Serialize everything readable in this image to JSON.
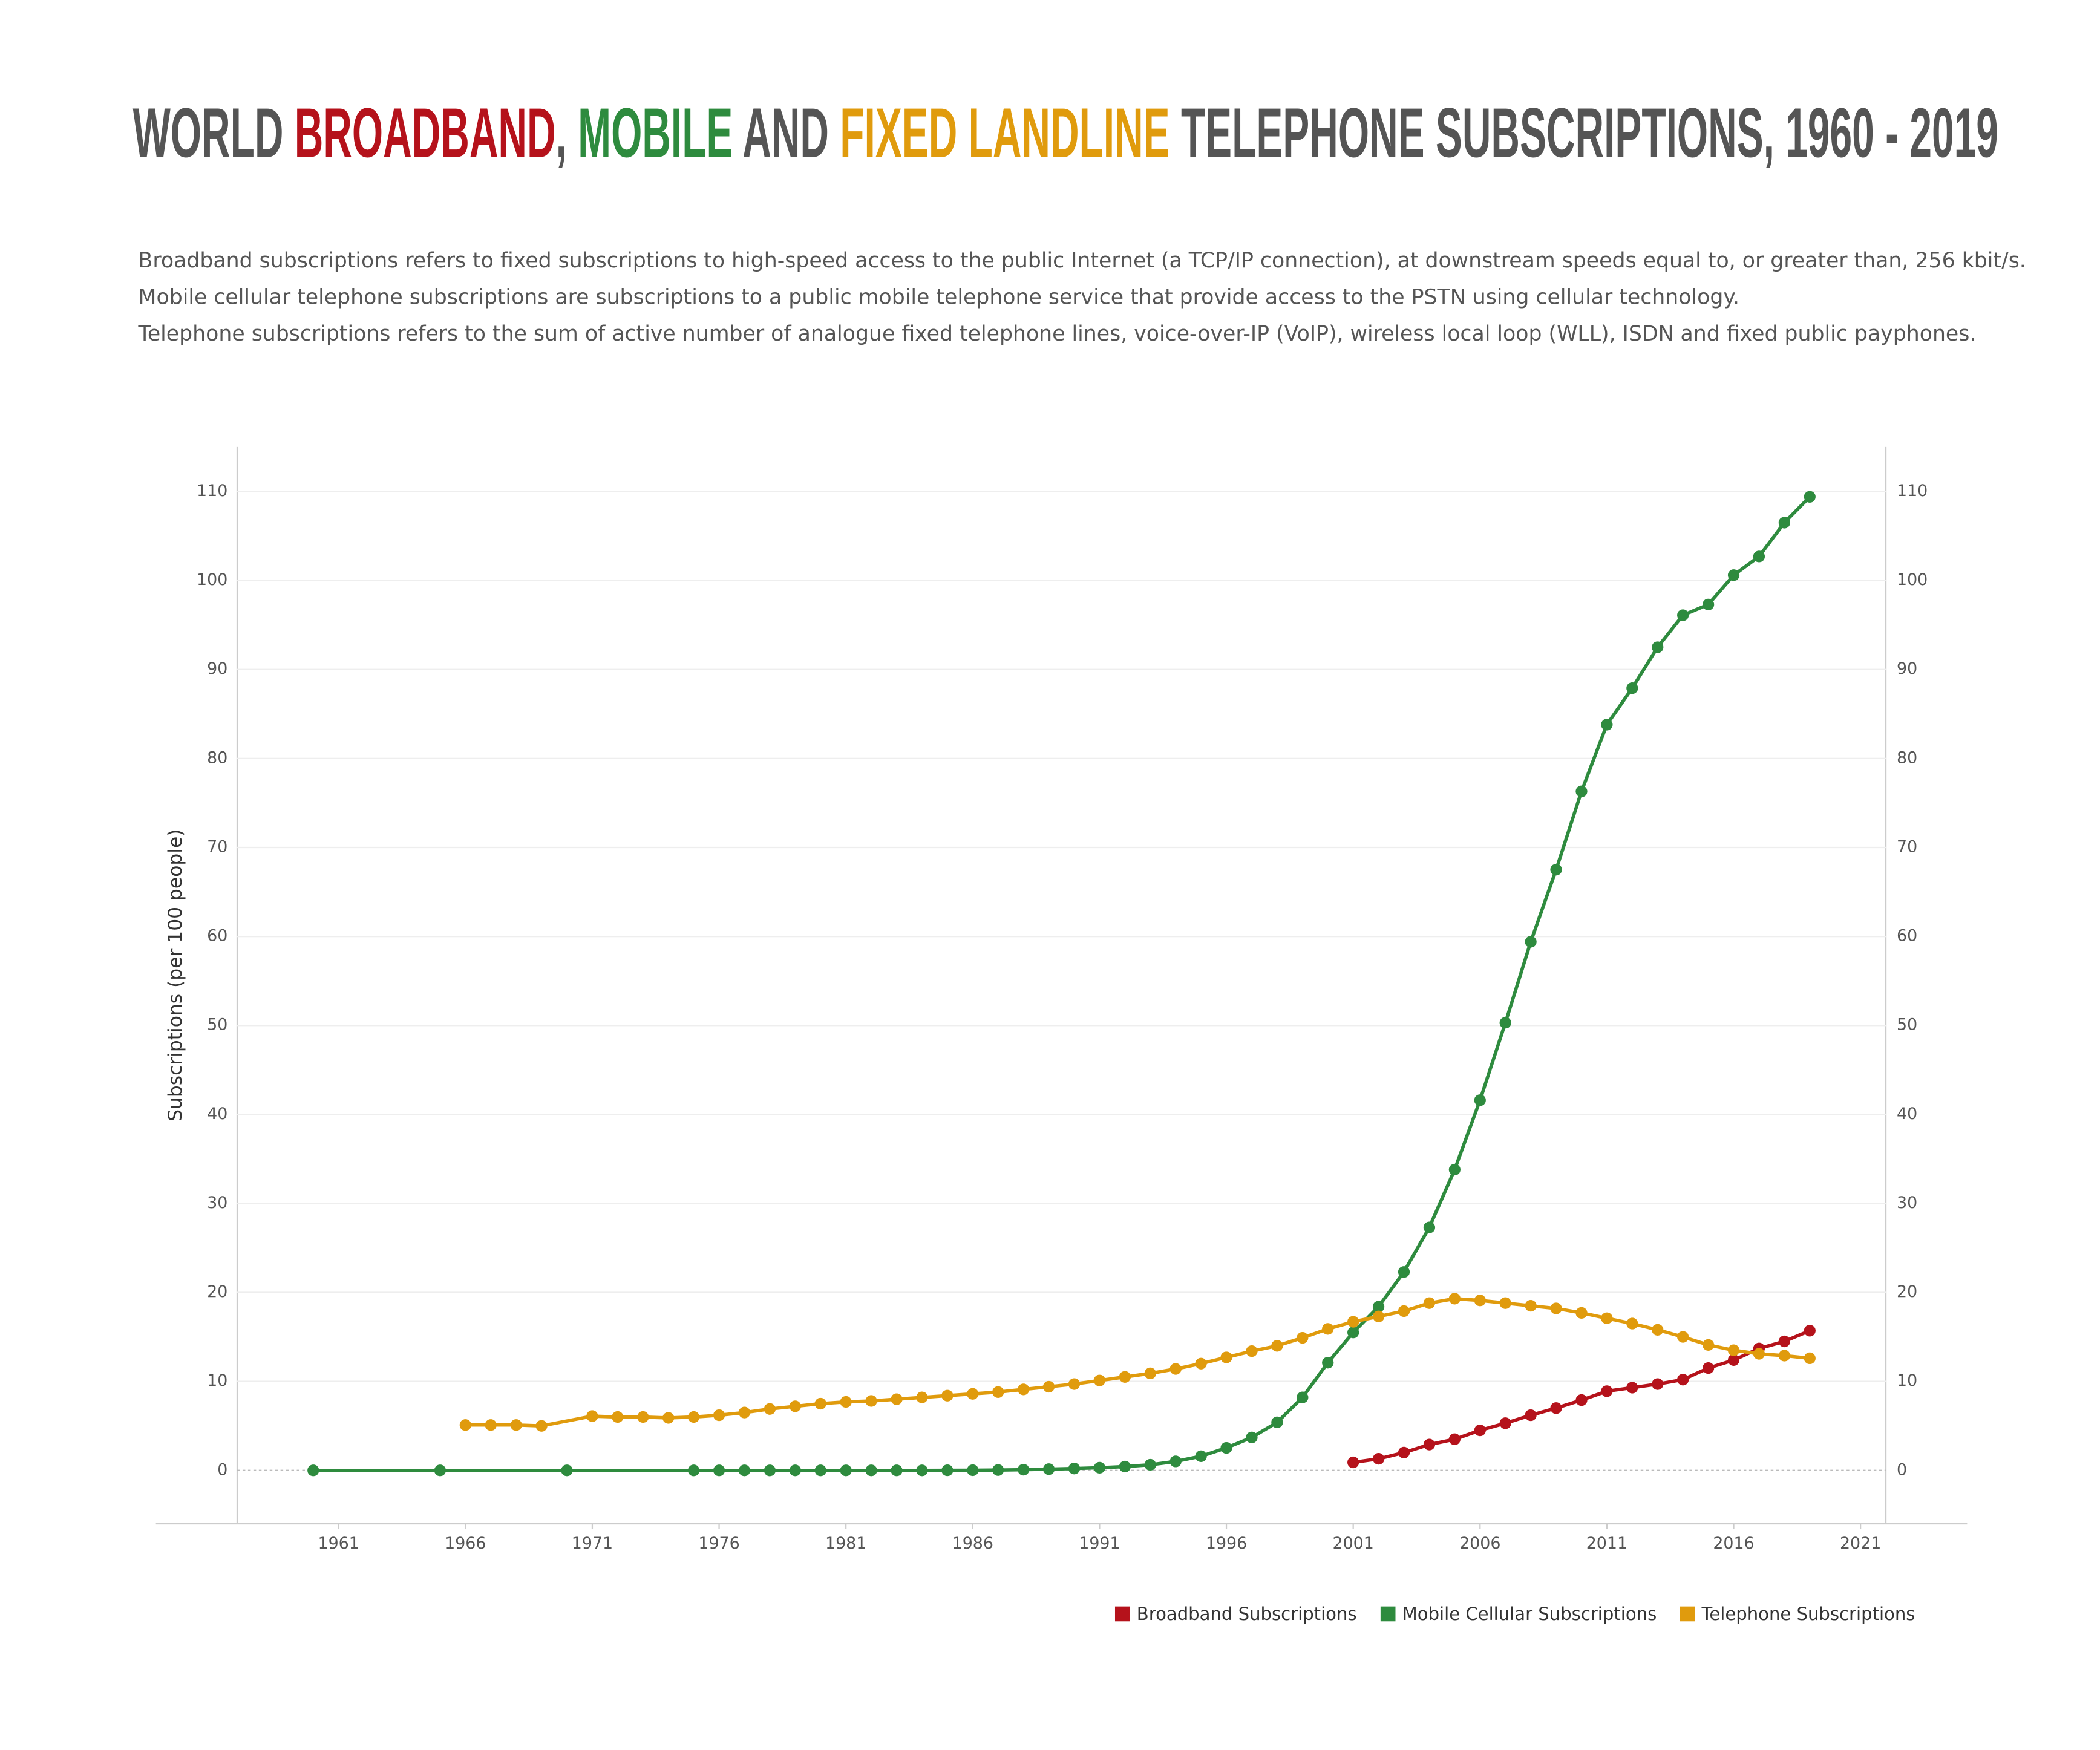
{
  "chart_data": {
    "type": "line",
    "title_parts": [
      {
        "text": "WORLD ",
        "color": "#555555"
      },
      {
        "text": "BROADBAND",
        "color": "#b5121b"
      },
      {
        "text": ", ",
        "color": "#555555"
      },
      {
        "text": "MOBILE",
        "color": "#2e8b3e"
      },
      {
        "text": " AND ",
        "color": "#555555"
      },
      {
        "text": "FIXED LANDLINE",
        "color": "#e09b0d"
      },
      {
        "text": " TELEPHONE SUBSCRIPTIONS, 1960 - 2019",
        "color": "#555555"
      }
    ],
    "description": [
      "Broadband subscriptions refers to fixed subscriptions to high-speed access to the public Internet (a TCP/IP connection), at downstream speeds equal to, or greater than, 256 kbit/s.",
      "Mobile cellular telephone subscriptions are subscriptions to a public mobile telephone service that provide access to the PSTN using cellular technology.",
      "Telephone subscriptions refers to the sum of active number of analogue fixed telephone lines, voice-over-IP (VoIP), wireless local loop (WLL), ISDN and fixed public payphones."
    ],
    "y_label": "Subscriptions (per 100 people)",
    "xlim": [
      1957,
      2022
    ],
    "xticks": [
      1961,
      1966,
      1971,
      1976,
      1981,
      1986,
      1991,
      1996,
      2001,
      2006,
      2011,
      2016,
      2021
    ],
    "ylim": [
      -6,
      115
    ],
    "yticks": [
      0,
      10,
      20,
      30,
      40,
      50,
      60,
      70,
      80,
      90,
      100,
      110
    ],
    "grid": true,
    "series": [
      {
        "name": "Broadband Subscriptions",
        "color": "#b5121b",
        "x": [
          2001,
          2002,
          2003,
          2004,
          2005,
          2006,
          2007,
          2008,
          2009,
          2010,
          2011,
          2012,
          2013,
          2014,
          2015,
          2016,
          2017,
          2018,
          2019
        ],
        "values": [
          0.9,
          1.3,
          2.0,
          2.9,
          3.5,
          4.5,
          5.3,
          6.2,
          7.0,
          7.9,
          8.9,
          9.3,
          9.7,
          10.2,
          11.5,
          12.4,
          13.7,
          14.5,
          15.7
        ]
      },
      {
        "name": "Mobile Cellular Subscriptions",
        "color": "#2e8b3e",
        "x": [
          1960,
          1965,
          1970,
          1975,
          1976,
          1977,
          1978,
          1979,
          1980,
          1981,
          1982,
          1983,
          1984,
          1985,
          1986,
          1987,
          1988,
          1989,
          1990,
          1991,
          1992,
          1993,
          1994,
          1995,
          1996,
          1997,
          1998,
          1999,
          2000,
          2001,
          2002,
          2003,
          2004,
          2005,
          2006,
          2007,
          2008,
          2009,
          2010,
          2011,
          2012,
          2013,
          2014,
          2015,
          2016,
          2017,
          2018,
          2019
        ],
        "values": [
          0,
          0,
          0,
          0,
          0,
          0,
          0,
          0,
          0,
          0,
          0,
          0,
          0,
          0.01,
          0.02,
          0.04,
          0.08,
          0.14,
          0.21,
          0.3,
          0.43,
          0.63,
          1.01,
          1.59,
          2.53,
          3.7,
          5.4,
          8.2,
          12.1,
          15.5,
          18.4,
          22.3,
          27.3,
          33.8,
          41.6,
          50.3,
          59.4,
          67.5,
          76.3,
          83.8,
          87.9,
          92.5,
          96.1,
          97.3,
          100.6,
          102.7,
          106.5,
          109.4
        ]
      },
      {
        "name": "Telephone Subscriptions",
        "color": "#e09b0d",
        "x": [
          1966,
          1967,
          1968,
          1969,
          1971,
          1972,
          1973,
          1974,
          1975,
          1976,
          1977,
          1978,
          1979,
          1980,
          1981,
          1982,
          1983,
          1984,
          1985,
          1986,
          1987,
          1988,
          1989,
          1990,
          1991,
          1992,
          1993,
          1994,
          1995,
          1996,
          1997,
          1998,
          1999,
          2000,
          2001,
          2002,
          2003,
          2004,
          2005,
          2006,
          2007,
          2008,
          2009,
          2010,
          2011,
          2012,
          2013,
          2014,
          2015,
          2016,
          2017,
          2018,
          2019
        ],
        "values": [
          5.1,
          5.1,
          5.1,
          5.0,
          6.1,
          6.0,
          6.0,
          5.9,
          6.0,
          6.2,
          6.5,
          6.9,
          7.2,
          7.5,
          7.7,
          7.8,
          8.0,
          8.2,
          8.4,
          8.6,
          8.8,
          9.1,
          9.4,
          9.7,
          10.1,
          10.5,
          10.9,
          11.4,
          12.0,
          12.7,
          13.4,
          14.0,
          14.9,
          15.9,
          16.7,
          17.3,
          17.9,
          18.8,
          19.3,
          19.1,
          18.8,
          18.5,
          18.2,
          17.7,
          17.1,
          16.5,
          15.8,
          15.0,
          14.1,
          13.5,
          13.1,
          12.9,
          12.6
        ]
      }
    ]
  }
}
